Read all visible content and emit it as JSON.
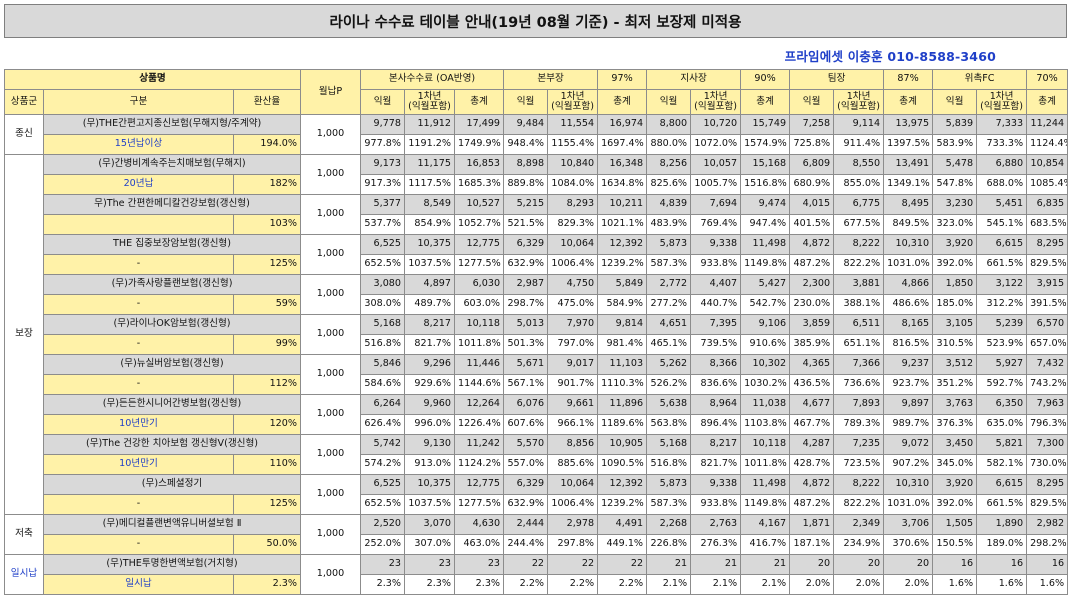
{
  "title": "라이나 수수료 테이블 안내(19년 08월 기준) - 최저 보장제 미적용",
  "contact": "프라임에셋 이충훈 010-8588-3460",
  "header": {
    "product_name": "상품명",
    "product_group": "상품군",
    "category": "구분",
    "refund_rate": "환산율",
    "monthly_premium": "월납P",
    "channels": [
      {
        "name": "본사수수료 (OA반영)",
        "pct": ""
      },
      {
        "name": "본부장",
        "pct": "97%"
      },
      {
        "name": "지사장",
        "pct": "90%"
      },
      {
        "name": "팀장",
        "pct": "87%"
      },
      {
        "name": "위촉FC",
        "pct": "70%"
      }
    ],
    "sub": [
      "익월",
      "1차년\n(익월포함)",
      "총계"
    ]
  },
  "groups": [
    {
      "name": "종신"
    },
    {
      "name": "보장"
    },
    {
      "name": "저축"
    },
    {
      "name": "일시납"
    }
  ],
  "products": [
    {
      "name": "(무)THE간편고지종신보험(무해지형/주계약)",
      "category": "15년납이상",
      "rate": "194.0%",
      "premium": "1,000",
      "amounts": [
        "9,778",
        "11,912",
        "17,499",
        "9,484",
        "11,554",
        "16,974",
        "8,800",
        "10,720",
        "15,749",
        "7,258",
        "9,114",
        "13,975",
        "5,839",
        "7,333",
        "11,244"
      ],
      "percents": [
        "977.8%",
        "1191.2%",
        "1749.9%",
        "948.4%",
        "1155.4%",
        "1697.4%",
        "880.0%",
        "1072.0%",
        "1574.9%",
        "725.8%",
        "911.4%",
        "1397.5%",
        "583.9%",
        "733.3%",
        "1124.4%"
      ]
    },
    {
      "name": "(무)간병비계속주는치매보험(무해지)",
      "category": "20년납",
      "rate": "182%",
      "premium": "1,000",
      "amounts": [
        "9,173",
        "11,175",
        "16,853",
        "8,898",
        "10,840",
        "16,348",
        "8,256",
        "10,057",
        "15,168",
        "6,809",
        "8,550",
        "13,491",
        "5,478",
        "6,880",
        "10,854"
      ],
      "percents": [
        "917.3%",
        "1117.5%",
        "1685.3%",
        "889.8%",
        "1084.0%",
        "1634.8%",
        "825.6%",
        "1005.7%",
        "1516.8%",
        "680.9%",
        "855.0%",
        "1349.1%",
        "547.8%",
        "688.0%",
        "1085.4%"
      ]
    },
    {
      "name": "무)The 간편한메디칼건강보험(갱신형)",
      "category": "",
      "rate": "103%",
      "premium": "1,000",
      "amounts": [
        "5,377",
        "8,549",
        "10,527",
        "5,215",
        "8,293",
        "10,211",
        "4,839",
        "7,694",
        "9,474",
        "4,015",
        "6,775",
        "8,495",
        "3,230",
        "5,451",
        "6,835"
      ],
      "percents": [
        "537.7%",
        "854.9%",
        "1052.7%",
        "521.5%",
        "829.3%",
        "1021.1%",
        "483.9%",
        "769.4%",
        "947.4%",
        "401.5%",
        "677.5%",
        "849.5%",
        "323.0%",
        "545.1%",
        "683.5%"
      ]
    },
    {
      "name": "THE 집중보장암보험(갱신형)",
      "category": "-",
      "rate": "125%",
      "premium": "1,000",
      "amounts": [
        "6,525",
        "10,375",
        "12,775",
        "6,329",
        "10,064",
        "12,392",
        "5,873",
        "9,338",
        "11,498",
        "4,872",
        "8,222",
        "10,310",
        "3,920",
        "6,615",
        "8,295"
      ],
      "percents": [
        "652.5%",
        "1037.5%",
        "1277.5%",
        "632.9%",
        "1006.4%",
        "1239.2%",
        "587.3%",
        "933.8%",
        "1149.8%",
        "487.2%",
        "822.2%",
        "1031.0%",
        "392.0%",
        "661.5%",
        "829.5%"
      ]
    },
    {
      "name": "(무)가족사랑플랜보험(갱신형)",
      "category": "-",
      "rate": "59%",
      "premium": "1,000",
      "amounts": [
        "3,080",
        "4,897",
        "6,030",
        "2,987",
        "4,750",
        "5,849",
        "2,772",
        "4,407",
        "5,427",
        "2,300",
        "3,881",
        "4,866",
        "1,850",
        "3,122",
        "3,915"
      ],
      "percents": [
        "308.0%",
        "489.7%",
        "603.0%",
        "298.7%",
        "475.0%",
        "584.9%",
        "277.2%",
        "440.7%",
        "542.7%",
        "230.0%",
        "388.1%",
        "486.6%",
        "185.0%",
        "312.2%",
        "391.5%"
      ]
    },
    {
      "name": "(무)라이나OK암보험(갱신형)",
      "category": "-",
      "rate": "99%",
      "premium": "1,000",
      "amounts": [
        "5,168",
        "8,217",
        "10,118",
        "5,013",
        "7,970",
        "9,814",
        "4,651",
        "7,395",
        "9,106",
        "3,859",
        "6,511",
        "8,165",
        "3,105",
        "5,239",
        "6,570"
      ],
      "percents": [
        "516.8%",
        "821.7%",
        "1011.8%",
        "501.3%",
        "797.0%",
        "981.4%",
        "465.1%",
        "739.5%",
        "910.6%",
        "385.9%",
        "651.1%",
        "816.5%",
        "310.5%",
        "523.9%",
        "657.0%"
      ]
    },
    {
      "name": "(무)뉴실버암보험(갱신형)",
      "category": "-",
      "rate": "112%",
      "premium": "1,000",
      "amounts": [
        "5,846",
        "9,296",
        "11,446",
        "5,671",
        "9,017",
        "11,103",
        "5,262",
        "8,366",
        "10,302",
        "4,365",
        "7,366",
        "9,237",
        "3,512",
        "5,927",
        "7,432"
      ],
      "percents": [
        "584.6%",
        "929.6%",
        "1144.6%",
        "567.1%",
        "901.7%",
        "1110.3%",
        "526.2%",
        "836.6%",
        "1030.2%",
        "436.5%",
        "736.6%",
        "923.7%",
        "351.2%",
        "592.7%",
        "743.2%"
      ]
    },
    {
      "name": "(무)든든한시니어간병보험(갱신형)",
      "category": "10년만기",
      "rate": "120%",
      "premium": "1,000",
      "amounts": [
        "6,264",
        "9,960",
        "12,264",
        "6,076",
        "9,661",
        "11,896",
        "5,638",
        "8,964",
        "11,038",
        "4,677",
        "7,893",
        "9,897",
        "3,763",
        "6,350",
        "7,963"
      ],
      "percents": [
        "626.4%",
        "996.0%",
        "1226.4%",
        "607.6%",
        "966.1%",
        "1189.6%",
        "563.8%",
        "896.4%",
        "1103.8%",
        "467.7%",
        "789.3%",
        "989.7%",
        "376.3%",
        "635.0%",
        "796.3%"
      ]
    },
    {
      "name": "(무)The 건강한 치아보험 갱신형V(갱신형)",
      "category": "10년만기",
      "rate": "110%",
      "premium": "1,000",
      "amounts": [
        "5,742",
        "9,130",
        "11,242",
        "5,570",
        "8,856",
        "10,905",
        "5,168",
        "8,217",
        "10,118",
        "4,287",
        "7,235",
        "9,072",
        "3,450",
        "5,821",
        "7,300"
      ],
      "percents": [
        "574.2%",
        "913.0%",
        "1124.2%",
        "557.0%",
        "885.6%",
        "1090.5%",
        "516.8%",
        "821.7%",
        "1011.8%",
        "428.7%",
        "723.5%",
        "907.2%",
        "345.0%",
        "582.1%",
        "730.0%"
      ]
    },
    {
      "name": "(무)스페셜정기",
      "category": "-",
      "rate": "125%",
      "premium": "1,000",
      "amounts": [
        "6,525",
        "10,375",
        "12,775",
        "6,329",
        "10,064",
        "12,392",
        "5,873",
        "9,338",
        "11,498",
        "4,872",
        "8,222",
        "10,310",
        "3,920",
        "6,615",
        "8,295"
      ],
      "percents": [
        "652.5%",
        "1037.5%",
        "1277.5%",
        "632.9%",
        "1006.4%",
        "1239.2%",
        "587.3%",
        "933.8%",
        "1149.8%",
        "487.2%",
        "822.2%",
        "1031.0%",
        "392.0%",
        "661.5%",
        "829.5%"
      ]
    },
    {
      "name": "(무)메디컬플랜변액유니버셜보험 Ⅱ",
      "category": "-",
      "rate": "50.0%",
      "premium": "1,000",
      "amounts": [
        "2,520",
        "3,070",
        "4,630",
        "2,444",
        "2,978",
        "4,491",
        "2,268",
        "2,763",
        "4,167",
        "1,871",
        "2,349",
        "3,706",
        "1,505",
        "1,890",
        "2,982"
      ],
      "percents": [
        "252.0%",
        "307.0%",
        "463.0%",
        "244.4%",
        "297.8%",
        "449.1%",
        "226.8%",
        "276.3%",
        "416.7%",
        "187.1%",
        "234.9%",
        "370.6%",
        "150.5%",
        "189.0%",
        "298.2%"
      ]
    },
    {
      "name": "(무)THE투명한변액보험(거치형)",
      "category": "일시납",
      "rate": "2.3%",
      "premium": "1,000",
      "amounts": [
        "23",
        "23",
        "23",
        "22",
        "22",
        "22",
        "21",
        "21",
        "21",
        "20",
        "20",
        "20",
        "16",
        "16",
        "16"
      ],
      "percents": [
        "2.3%",
        "2.3%",
        "2.3%",
        "2.2%",
        "2.2%",
        "2.2%",
        "2.1%",
        "2.1%",
        "2.1%",
        "2.0%",
        "2.0%",
        "2.0%",
        "1.6%",
        "1.6%",
        "1.6%"
      ]
    }
  ]
}
